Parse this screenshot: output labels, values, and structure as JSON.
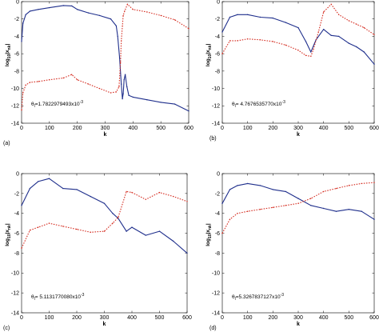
{
  "chart_data": [
    {
      "id": "a",
      "type": "line",
      "panel_label": "(a)",
      "xlabel": "k",
      "ylabel": "log10|x_k|",
      "ylabel_main": "log",
      "ylabel_sub": "10",
      "ylabel_rest": "|x",
      "ylabel_rest_sub": "nk",
      "ylabel_end": "|",
      "annotation": {
        "prefix": "θ",
        "sub": "l",
        "value": "=1.7822979493x10",
        "exp": "-3"
      },
      "xlim": [
        0,
        600
      ],
      "ylim": [
        -14,
        0
      ],
      "xticks": [
        "0",
        "100",
        "200",
        "300",
        "400",
        "500",
        "600"
      ],
      "yticks": [
        "0",
        "-2",
        "-4",
        "-6",
        "-8",
        "-10",
        "-12",
        "-14"
      ],
      "grid": false,
      "series": [
        {
          "color": "#1f2f8c",
          "style": "solid",
          "x": [
            0,
            5,
            15,
            30,
            60,
            100,
            150,
            180,
            200,
            240,
            280,
            320,
            340,
            345,
            352,
            358,
            362,
            365,
            368,
            372,
            378,
            385,
            400,
            450,
            500,
            550,
            600
          ],
          "y": [
            -4.6,
            -2.5,
            -1.5,
            -1.1,
            -0.9,
            -0.7,
            -0.45,
            -0.5,
            -0.9,
            -1.3,
            -1.6,
            -2.0,
            -2.8,
            -4.0,
            -6.5,
            -9.5,
            -11.2,
            -10.6,
            -9.0,
            -8.4,
            -9.8,
            -10.8,
            -11.0,
            -11.3,
            -11.6,
            -11.8,
            -12.6
          ]
        },
        {
          "color": "#d42a1e",
          "style": "dotted",
          "x": [
            0,
            5,
            15,
            30,
            60,
            100,
            150,
            180,
            200,
            240,
            280,
            320,
            340,
            350,
            355,
            358,
            362,
            365,
            370,
            380,
            400,
            450,
            500,
            550,
            600
          ],
          "y": [
            -12.5,
            -10.5,
            -9.6,
            -9.3,
            -9.2,
            -9.0,
            -8.8,
            -8.4,
            -9.0,
            -9.5,
            -10.0,
            -10.5,
            -10.4,
            -9.8,
            -7.0,
            -4.5,
            -2.8,
            -1.6,
            -1.1,
            -0.3,
            -0.9,
            -1.2,
            -1.6,
            -2.1,
            -3.1
          ]
        }
      ]
    },
    {
      "id": "b",
      "type": "line",
      "panel_label": "(b)",
      "xlabel": "k",
      "ylabel": "log10|x_k|",
      "ylabel_main": "log",
      "ylabel_sub": "10",
      "ylabel_rest": "|x",
      "ylabel_rest_sub": "nk",
      "ylabel_end": "|",
      "annotation": {
        "prefix": "θ",
        "sub": "l",
        "value": "= 4.7676535770x10",
        "exp": "-3"
      },
      "xlim": [
        0,
        600
      ],
      "ylim": [
        -14,
        0
      ],
      "xticks": [
        "0",
        "100",
        "200",
        "300",
        "400",
        "500",
        "600"
      ],
      "yticks": [
        "0",
        "-2",
        "-4",
        "-6",
        "-8",
        "-10",
        "-12",
        "-14"
      ],
      "grid": false,
      "series": [
        {
          "color": "#1f2f8c",
          "style": "solid",
          "x": [
            0,
            30,
            60,
            100,
            150,
            200,
            250,
            300,
            330,
            350,
            370,
            400,
            430,
            460,
            500,
            530,
            560,
            600
          ],
          "y": [
            -3.5,
            -1.8,
            -1.5,
            -1.5,
            -1.8,
            -1.9,
            -2.4,
            -3.0,
            -4.6,
            -5.8,
            -4.4,
            -3.2,
            -3.9,
            -4.0,
            -4.8,
            -5.2,
            -5.8,
            -7.2
          ]
        },
        {
          "color": "#d42a1e",
          "style": "dotted",
          "x": [
            0,
            30,
            60,
            100,
            150,
            200,
            250,
            300,
            330,
            350,
            360,
            380,
            400,
            430,
            460,
            500,
            530,
            560,
            600
          ],
          "y": [
            -6.0,
            -4.5,
            -4.5,
            -4.3,
            -4.4,
            -4.6,
            -5.0,
            -5.6,
            -6.2,
            -6.3,
            -5.5,
            -3.5,
            -1.2,
            -0.3,
            -1.5,
            -2.2,
            -2.6,
            -3.0,
            -3.8
          ]
        }
      ]
    },
    {
      "id": "c",
      "type": "line",
      "panel_label": "(c)",
      "xlabel": "k",
      "ylabel": "log10|x_k|",
      "ylabel_main": "log",
      "ylabel_sub": "10",
      "ylabel_rest": "|x",
      "ylabel_rest_sub": "nk",
      "ylabel_end": "|",
      "annotation": {
        "prefix": "θ",
        "sub": "l",
        "value": "= 5.1131770080x10",
        "exp": "-3"
      },
      "xlim": [
        0,
        600
      ],
      "ylim": [
        -14,
        0
      ],
      "xticks": [
        "0",
        "100",
        "200",
        "300",
        "400",
        "500",
        "600"
      ],
      "yticks": [
        "0",
        "-2",
        "-4",
        "-6",
        "-8",
        "-10",
        "-12",
        "-14"
      ],
      "grid": false,
      "series": [
        {
          "color": "#1f2f8c",
          "style": "solid",
          "x": [
            0,
            30,
            60,
            100,
            150,
            200,
            250,
            300,
            330,
            350,
            380,
            400,
            450,
            500,
            550,
            600
          ],
          "y": [
            -3.2,
            -1.5,
            -0.8,
            -0.5,
            -1.5,
            -1.6,
            -2.3,
            -3.0,
            -4.0,
            -4.5,
            -5.8,
            -5.4,
            -6.2,
            -5.8,
            -6.8,
            -8.0
          ]
        },
        {
          "color": "#d42a1e",
          "style": "dotted",
          "x": [
            0,
            30,
            60,
            100,
            150,
            200,
            250,
            300,
            330,
            350,
            380,
            400,
            450,
            500,
            550,
            600
          ],
          "y": [
            -7.5,
            -5.7,
            -5.4,
            -5.0,
            -5.3,
            -5.6,
            -5.9,
            -5.8,
            -5.0,
            -4.4,
            -1.8,
            -1.9,
            -2.6,
            -1.9,
            -2.3,
            -2.8
          ]
        }
      ]
    },
    {
      "id": "d",
      "type": "line",
      "panel_label": "(d)",
      "xlabel": "k",
      "ylabel": "log10|x_k|",
      "ylabel_main": "log",
      "ylabel_sub": "10",
      "ylabel_rest": "|x",
      "ylabel_rest_sub": "nk",
      "ylabel_end": "|",
      "annotation": {
        "prefix": "θ",
        "sub": "l",
        "value": "=5.3267837127x10",
        "exp": "-3"
      },
      "xlim": [
        0,
        600
      ],
      "ylim": [
        -14,
        0
      ],
      "xticks": [
        "0",
        "100",
        "200",
        "300",
        "400",
        "500",
        "600"
      ],
      "yticks": [
        "0",
        "-2",
        "-4",
        "-6",
        "-8",
        "-10",
        "-12",
        "-14"
      ],
      "grid": false,
      "series": [
        {
          "color": "#1f2f8c",
          "style": "solid",
          "x": [
            0,
            30,
            60,
            100,
            150,
            200,
            250,
            300,
            350,
            400,
            450,
            500,
            550,
            600
          ],
          "y": [
            -3.0,
            -1.6,
            -1.2,
            -1.0,
            -1.2,
            -1.6,
            -1.8,
            -2.5,
            -3.2,
            -3.5,
            -3.8,
            -3.6,
            -3.8,
            -4.6
          ]
        },
        {
          "color": "#d42a1e",
          "style": "dotted",
          "x": [
            0,
            30,
            60,
            100,
            150,
            200,
            250,
            300,
            350,
            400,
            450,
            500,
            550,
            600
          ],
          "y": [
            -6.0,
            -4.6,
            -4.0,
            -3.8,
            -3.6,
            -3.4,
            -3.2,
            -3.0,
            -2.5,
            -1.8,
            -1.5,
            -1.2,
            -1.0,
            -0.9
          ]
        }
      ]
    }
  ]
}
